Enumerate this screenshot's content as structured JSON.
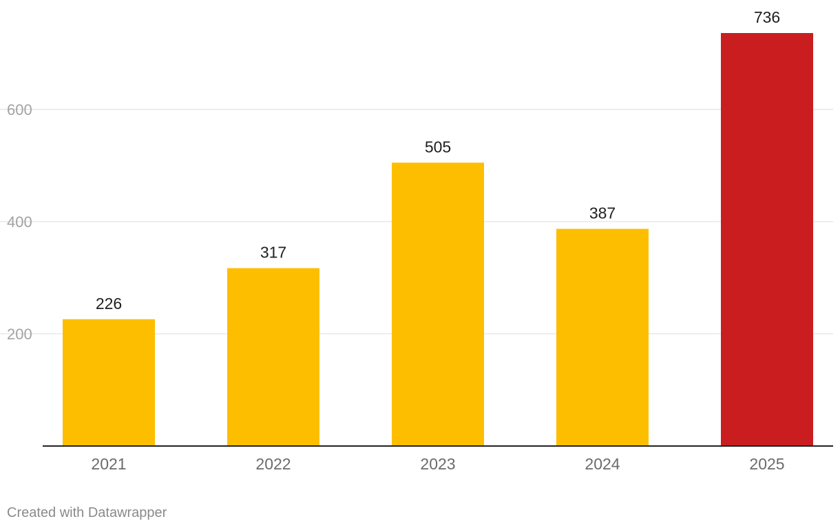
{
  "chart_data": {
    "type": "bar",
    "categories": [
      "2021",
      "2022",
      "2023",
      "2024",
      "2025"
    ],
    "values": [
      226,
      317,
      505,
      387,
      736
    ],
    "value_labels": [
      "226",
      "317",
      "505",
      "387",
      "736"
    ],
    "ylim": [
      0,
      736
    ],
    "yticks": [
      200,
      400,
      600
    ],
    "ytick_labels": [
      "200",
      "400",
      "600"
    ],
    "grid": true,
    "colors": {
      "default": "#fdbe00",
      "highlight": "#c91d1f",
      "highlight_category": "2025"
    }
  },
  "footer": {
    "credit": "Created with Datawrapper"
  }
}
